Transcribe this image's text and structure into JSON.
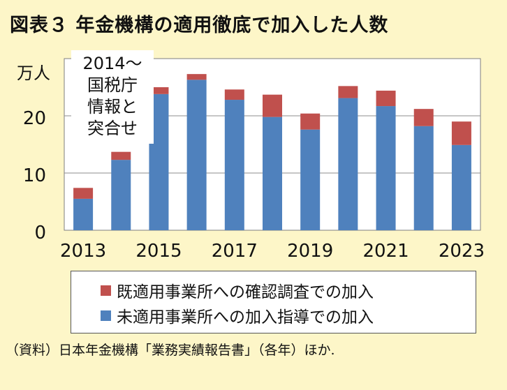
{
  "title": "図表３ 年金機構の適用徹底で加入した人数",
  "source": "（資料）日本年金機構「業務実績報告書」（各年）ほか.",
  "chart_data": {
    "type": "bar",
    "stacked": true,
    "unit_label": "万人",
    "categories": [
      "2013",
      "2014",
      "2015",
      "2016",
      "2017",
      "2018",
      "2019",
      "2020",
      "2021",
      "2022",
      "2023"
    ],
    "x_tick_labels": [
      "2013",
      "2015",
      "2017",
      "2019",
      "2021",
      "2023"
    ],
    "y_ticks": [
      0,
      10,
      20
    ],
    "ylim": [
      0,
      30
    ],
    "grid": true,
    "series": [
      {
        "name": "未適用事業所への加入指導での加入",
        "color": "#4f81bd",
        "values": [
          5.5,
          12.3,
          23.8,
          26.3,
          22.8,
          19.8,
          17.6,
          23.1,
          21.7,
          18.2,
          14.9
        ]
      },
      {
        "name": "既適用事業所への確認調査での加入",
        "color": "#c0504d",
        "values": [
          1.9,
          1.4,
          1.2,
          1.0,
          1.8,
          3.9,
          2.8,
          2.1,
          2.7,
          3.0,
          4.1
        ]
      }
    ],
    "annotation": [
      "2014～",
      "国税庁",
      "情報と",
      "突合せ"
    ],
    "legend_position": "bottom"
  }
}
